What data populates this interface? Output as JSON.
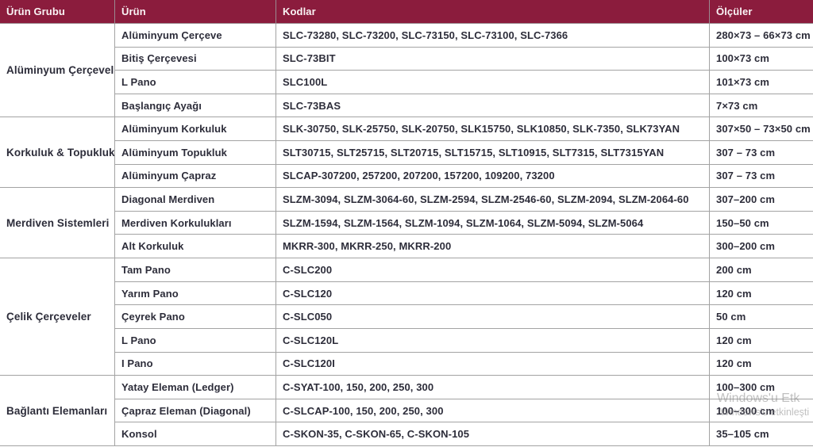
{
  "header": {
    "columns": [
      "Ürün Grubu",
      "Ürün",
      "Kodlar",
      "Ölçüler"
    ]
  },
  "groups": [
    {
      "name": "Alüminyum Çerçeveler",
      "rows": [
        {
          "product": "Alüminyum Çerçeve",
          "codes": "SLC-73280, SLC-73200, SLC-73150, SLC-73100, SLC-7366",
          "sizes": "280×73 – 66×73 cm"
        },
        {
          "product": "Bitiş Çerçevesi",
          "codes": "SLC-73BIT",
          "sizes": "100×73 cm"
        },
        {
          "product": "L Pano",
          "codes": "SLC100L",
          "sizes": "101×73 cm"
        },
        {
          "product": "Başlangıç Ayağı",
          "codes": "SLC-73BAS",
          "sizes": "7×73 cm"
        }
      ]
    },
    {
      "name": "Korkuluk & Topukluk",
      "rows": [
        {
          "product": "Alüminyum Korkuluk",
          "codes": "SLK-30750, SLK-25750, SLK-20750, SLK15750, SLK10850, SLK-7350, SLK73YAN",
          "sizes": "307×50 – 73×50 cm"
        },
        {
          "product": "Alüminyum Topukluk",
          "codes": "SLT30715, SLT25715, SLT20715, SLT15715, SLT10915, SLT7315, SLT7315YAN",
          "sizes": "307 – 73 cm"
        },
        {
          "product": "Alüminyum Çapraz",
          "codes": "SLCAP-307200, 257200, 207200, 157200, 109200, 73200",
          "sizes": "307 – 73 cm"
        }
      ]
    },
    {
      "name": "Merdiven Sistemleri",
      "rows": [
        {
          "product": "Diagonal Merdiven",
          "codes": "SLZM-3094, SLZM-3064-60, SLZM-2594, SLZM-2546-60, SLZM-2094, SLZM-2064-60",
          "sizes": "307–200 cm"
        },
        {
          "product": "Merdiven Korkulukları",
          "codes": "SLZM-1594, SLZM-1564, SLZM-1094, SLZM-1064, SLZM-5094, SLZM-5064",
          "sizes": "150–50 cm"
        },
        {
          "product": "Alt Korkuluk",
          "codes": "MKRR-300, MKRR-250, MKRR-200",
          "sizes": "300–200 cm"
        }
      ]
    },
    {
      "name": "Çelik Çerçeveler",
      "rows": [
        {
          "product": "Tam Pano",
          "codes": "C-SLC200",
          "sizes": "200 cm"
        },
        {
          "product": "Yarım Pano",
          "codes": "C-SLC120",
          "sizes": "120 cm"
        },
        {
          "product": "Çeyrek Pano",
          "codes": "C-SLC050",
          "sizes": "50 cm"
        },
        {
          "product": "L Pano",
          "codes": "C-SLC120L",
          "sizes": "120 cm"
        },
        {
          "product": "I Pano",
          "codes": "C-SLC120I",
          "sizes": "120 cm"
        }
      ]
    },
    {
      "name": "Bağlantı Elemanları",
      "rows": [
        {
          "product": "Yatay Eleman (Ledger)",
          "codes": "C-SYAT-100, 150, 200, 250, 300",
          "sizes": "100–300 cm"
        },
        {
          "product": "Çapraz Eleman (Diagonal)",
          "codes": "C-SLCAP-100, 150, 200, 250, 300",
          "sizes": "100–300 cm"
        },
        {
          "product": "Konsol",
          "codes": "C-SKON-35, C-SKON-65, C-SKON-105",
          "sizes": "35–105 cm"
        }
      ]
    }
  ],
  "watermark": {
    "line1": "Windows'u Etk",
    "line2": "Windows'u etkinleşti"
  },
  "colors": {
    "header_bg": "#8b1c3d",
    "header_text": "#faf4f5",
    "body_text": "#2d2d3a",
    "border": "#a3a3a3"
  }
}
